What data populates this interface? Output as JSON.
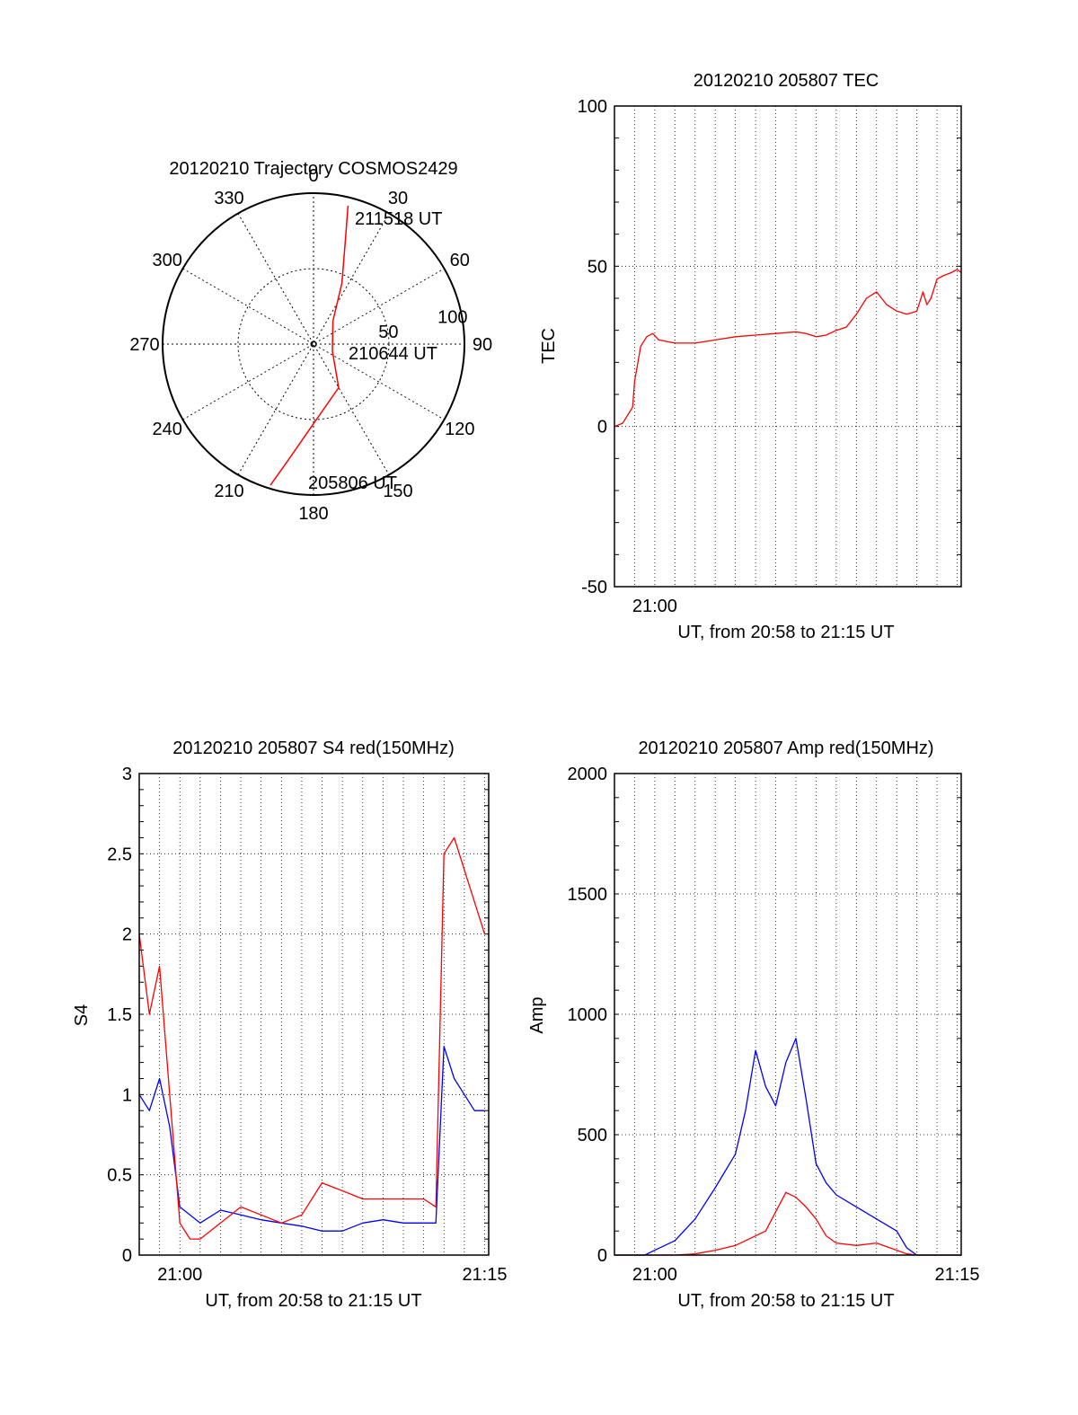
{
  "chart_data": [
    {
      "type": "polar",
      "title": "20120210 Trajectory COSMOS2429",
      "azimuth_labels": [
        "0",
        "30",
        "60",
        "90",
        "120",
        "150",
        "180",
        "210",
        "240",
        "270",
        "300",
        "330"
      ],
      "radial_labels": [
        "50",
        "100"
      ],
      "grid": true,
      "series": [
        {
          "color": "#ff0000",
          "points": [
            {
              "az": 197,
              "zen": 88
            },
            {
              "az": 192,
              "zen": 70
            },
            {
              "az": 182,
              "zen": 50
            },
            {
              "az": 150,
              "zen": 30
            },
            {
              "az": 110,
              "zen": 12
            },
            {
              "az": 40,
              "zen": 18
            },
            {
              "az": 25,
              "zen": 40
            },
            {
              "az": 17,
              "zen": 65
            },
            {
              "az": 14,
              "zen": 85
            }
          ]
        }
      ],
      "annotations": [
        "211518 UT",
        "210644 UT",
        "205806 UT"
      ]
    },
    {
      "type": "line",
      "title": "20120210 205807 TEC",
      "xlabel": "UT, from 20:58 to 21:15 UT",
      "ylabel": "TEC",
      "xlim": [
        0,
        17.2
      ],
      "ylim": [
        -50,
        100
      ],
      "yticks": [
        "-50",
        "0",
        "50",
        "100"
      ],
      "xticks": [
        {
          "x": 2,
          "label": "21:00"
        }
      ],
      "grid": true,
      "series": [
        {
          "color": "#ff0000",
          "x": [
            0,
            0.4,
            0.6,
            0.9,
            1.0,
            1.3,
            1.6,
            1.9,
            2.2,
            3.0,
            4.0,
            5.0,
            6.0,
            7.0,
            8.0,
            9.0,
            9.5,
            10.0,
            10.5,
            11.0,
            11.5,
            12.0,
            12.5,
            13.0,
            13.5,
            14.0,
            14.5,
            15.0,
            15.3,
            15.5,
            15.7,
            16.0,
            16.3,
            16.7,
            17.0,
            17.2
          ],
          "y": [
            0,
            1,
            3,
            6,
            14,
            25,
            28,
            29,
            27,
            26,
            26,
            27,
            28,
            28.5,
            29,
            29.5,
            29,
            28,
            28.5,
            30,
            31,
            35,
            40,
            42,
            38,
            36,
            35,
            36,
            42,
            38,
            40,
            46,
            47,
            48,
            49,
            48
          ]
        }
      ]
    },
    {
      "type": "line",
      "title": "20120210 205807 S4 red(150MHz)",
      "xlabel": "UT, from 20:58 to 21:15 UT",
      "ylabel": "S4",
      "xlim": [
        0,
        17.2
      ],
      "ylim": [
        0,
        3
      ],
      "yticks": [
        "0",
        "0.5",
        "1",
        "1.5",
        "2",
        "2.5",
        "3"
      ],
      "xticks": [
        {
          "x": 2,
          "label": "21:00"
        },
        {
          "x": 17,
          "label": "21:15"
        }
      ],
      "grid": true,
      "series": [
        {
          "color": "#0000ff",
          "x": [
            0,
            0.5,
            1.0,
            1.5,
            2.0,
            3.0,
            4.0,
            5.0,
            6.0,
            7.0,
            8.0,
            9.0,
            10.0,
            11.0,
            12.0,
            13.0,
            14.0,
            14.6,
            15.0,
            15.5,
            16.0,
            16.5,
            17.0
          ],
          "y": [
            1.0,
            0.9,
            1.1,
            0.8,
            0.3,
            0.2,
            0.28,
            0.25,
            0.22,
            0.2,
            0.18,
            0.15,
            0.15,
            0.2,
            0.22,
            0.2,
            0.2,
            0.2,
            1.3,
            1.1,
            1.0,
            0.9,
            0.9
          ]
        },
        {
          "color": "#ff0000",
          "x": [
            0,
            0.5,
            1.0,
            1.5,
            2.0,
            2.5,
            3.0,
            4.0,
            5.0,
            6.0,
            7.0,
            8.0,
            9.0,
            10.0,
            11.0,
            12.0,
            13.0,
            14.0,
            14.6,
            15.0,
            15.5,
            16.0,
            16.5,
            17.0
          ],
          "y": [
            2.0,
            1.5,
            1.8,
            1.0,
            0.2,
            0.1,
            0.1,
            0.2,
            0.3,
            0.25,
            0.2,
            0.25,
            0.45,
            0.4,
            0.35,
            0.35,
            0.35,
            0.35,
            0.3,
            2.5,
            2.6,
            2.4,
            2.2,
            2.0
          ]
        }
      ]
    },
    {
      "type": "line",
      "title": "20120210 205807 Amp red(150MHz)",
      "xlabel": "UT, from 20:58 to 21:15 UT",
      "ylabel": "Amp",
      "xlim": [
        0,
        17.2
      ],
      "ylim": [
        0,
        2000
      ],
      "yticks": [
        "0",
        "500",
        "1000",
        "1500",
        "2000"
      ],
      "xticks": [
        {
          "x": 2,
          "label": "21:00"
        },
        {
          "x": 17,
          "label": "21:15"
        }
      ],
      "grid": true,
      "series": [
        {
          "color": "#0000ff",
          "x": [
            0,
            1.5,
            2.0,
            3.0,
            4.0,
            5.0,
            6.0,
            6.5,
            7.0,
            7.5,
            8.0,
            8.5,
            9.0,
            9.5,
            10.0,
            10.5,
            11.0,
            12.0,
            13.0,
            14.0,
            14.5,
            15.0,
            17.2
          ],
          "y": [
            0,
            0,
            20,
            60,
            150,
            280,
            420,
            600,
            850,
            700,
            620,
            800,
            900,
            650,
            380,
            300,
            250,
            200,
            150,
            100,
            30,
            0,
            0
          ]
        },
        {
          "color": "#ff0000",
          "x": [
            0,
            3.0,
            4.0,
            5.0,
            6.0,
            7.0,
            7.5,
            8.0,
            8.5,
            9.0,
            9.5,
            10.0,
            10.5,
            11.0,
            12.0,
            13.0,
            14.0,
            14.5,
            15.0,
            17.2
          ],
          "y": [
            0,
            0,
            5,
            20,
            40,
            80,
            100,
            180,
            260,
            240,
            200,
            150,
            80,
            50,
            40,
            50,
            20,
            5,
            0,
            0
          ]
        }
      ]
    }
  ]
}
